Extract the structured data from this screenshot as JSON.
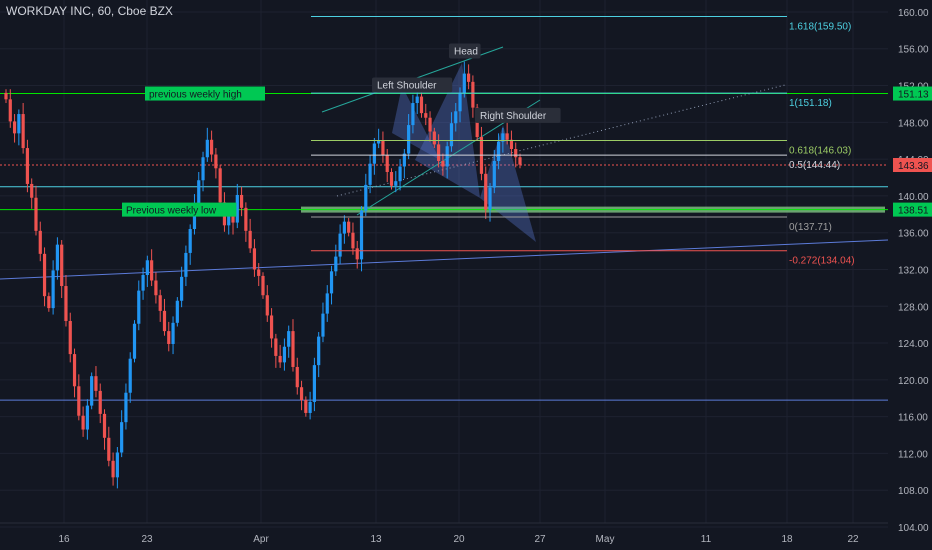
{
  "title": "WORKDAY INC, 60, Cboe BZX",
  "colors": {
    "background": "#131722",
    "grid": "#1e2230",
    "up": "#2196f3",
    "down": "#ef5350",
    "green_line": "#00e600",
    "fib": "#4dd0e1",
    "trend": "#26a69a",
    "zone": "#81c784"
  },
  "chart_data": {
    "type": "candlestick",
    "ylim": [
      101.5,
      161.3
    ],
    "y_ticks": [
      "160.00",
      "156.00",
      "152.00",
      "148.00",
      "144.00",
      "140.00",
      "136.00",
      "132.00",
      "128.00",
      "124.00",
      "120.00",
      "116.00",
      "112.00",
      "108.00",
      "104.00"
    ],
    "x_ticks": [
      "16",
      "23",
      "Apr",
      "13",
      "20",
      "27",
      "May",
      "11",
      "18",
      "22"
    ],
    "price_labels": [
      {
        "text": "151.13",
        "value": 151.13,
        "style": "green"
      },
      {
        "text": "143.36",
        "value": 143.36,
        "style": "red"
      },
      {
        "text": "138.51",
        "value": 138.51,
        "style": "green"
      }
    ],
    "annotations": [
      {
        "text": "previous weekly high",
        "value": 151.13,
        "kind": "level-label"
      },
      {
        "text": "Previous weekly low",
        "value": 138.51,
        "kind": "level-label"
      },
      {
        "text": "Left Shoulder",
        "value": 152.0,
        "kind": "pattern-label"
      },
      {
        "text": "Head",
        "value": 155.7,
        "kind": "pattern-label"
      },
      {
        "text": "Right Shoulder",
        "value": 148.7,
        "kind": "pattern-label"
      }
    ],
    "fib_levels": [
      {
        "label": "1.618(159.50)",
        "value": 159.5,
        "color": "#4dd0e1"
      },
      {
        "label": "1(151.18)",
        "value": 151.18,
        "color": "#4dd0e1"
      },
      {
        "label": "0.618(146.03)",
        "value": 146.03,
        "color": "#9ccc65"
      },
      {
        "label": "0.5(144.44)",
        "value": 144.44,
        "color": "#d1d4dc"
      },
      {
        "label": "0(137.71)",
        "value": 137.71,
        "color": "#9e9e9e"
      },
      {
        "label": "-0.272(134.04)",
        "value": 134.04,
        "color": "#ef5350"
      }
    ],
    "horizontal_levels": [
      {
        "value": 151.13,
        "color": "#00e600"
      },
      {
        "value": 138.51,
        "color": "#00e600"
      },
      {
        "value": 141.0,
        "color": "#4dd0e1"
      },
      {
        "value": 117.8,
        "color": "#5c7bd9"
      }
    ],
    "last_price": 143.36,
    "closes": [
      150.5,
      148.1,
      146.8,
      148.9,
      145.2,
      141.3,
      139.8,
      136.2,
      133.7,
      129.1,
      127.8,
      131.9,
      134.7,
      130.2,
      126.4,
      122.8,
      119.3,
      116.1,
      114.6,
      117.2,
      120.4,
      118.8,
      116.3,
      113.7,
      111.2,
      109.4,
      112.1,
      115.4,
      118.6,
      122.3,
      126.1,
      129.7,
      131.4,
      133.0,
      130.8,
      129.2,
      127.5,
      125.3,
      123.9,
      126.2,
      128.6,
      131.2,
      133.8,
      136.4,
      139.0,
      141.7,
      144.2,
      146.1,
      144.5,
      143.0,
      139.3,
      136.8,
      138.2,
      137.1,
      140.1,
      138.7,
      136.2,
      134.3,
      132.0,
      131.3,
      129.2,
      127.0,
      124.5,
      122.6,
      121.9,
      123.6,
      125.3,
      121.4,
      119.2,
      117.8,
      116.4,
      117.6,
      121.6,
      124.7,
      127.2,
      129.4,
      131.8,
      133.4,
      135.9,
      137.2,
      136.0,
      134.3,
      133.1,
      138.4,
      141.2,
      143.5,
      145.7,
      146.0,
      144.4,
      142.6,
      141.1,
      141.6,
      143.2,
      144.6,
      147.7,
      150.1,
      150.8,
      149.0,
      148.5,
      147.0,
      145.6,
      143.8,
      143.2,
      145.4,
      147.9,
      149.2,
      151.2,
      153.3,
      152.4,
      149.6,
      146.4,
      142.4,
      138.5,
      140.9,
      143.8,
      145.9,
      146.8,
      146.1,
      145.1,
      144.2,
      143.4
    ]
  }
}
